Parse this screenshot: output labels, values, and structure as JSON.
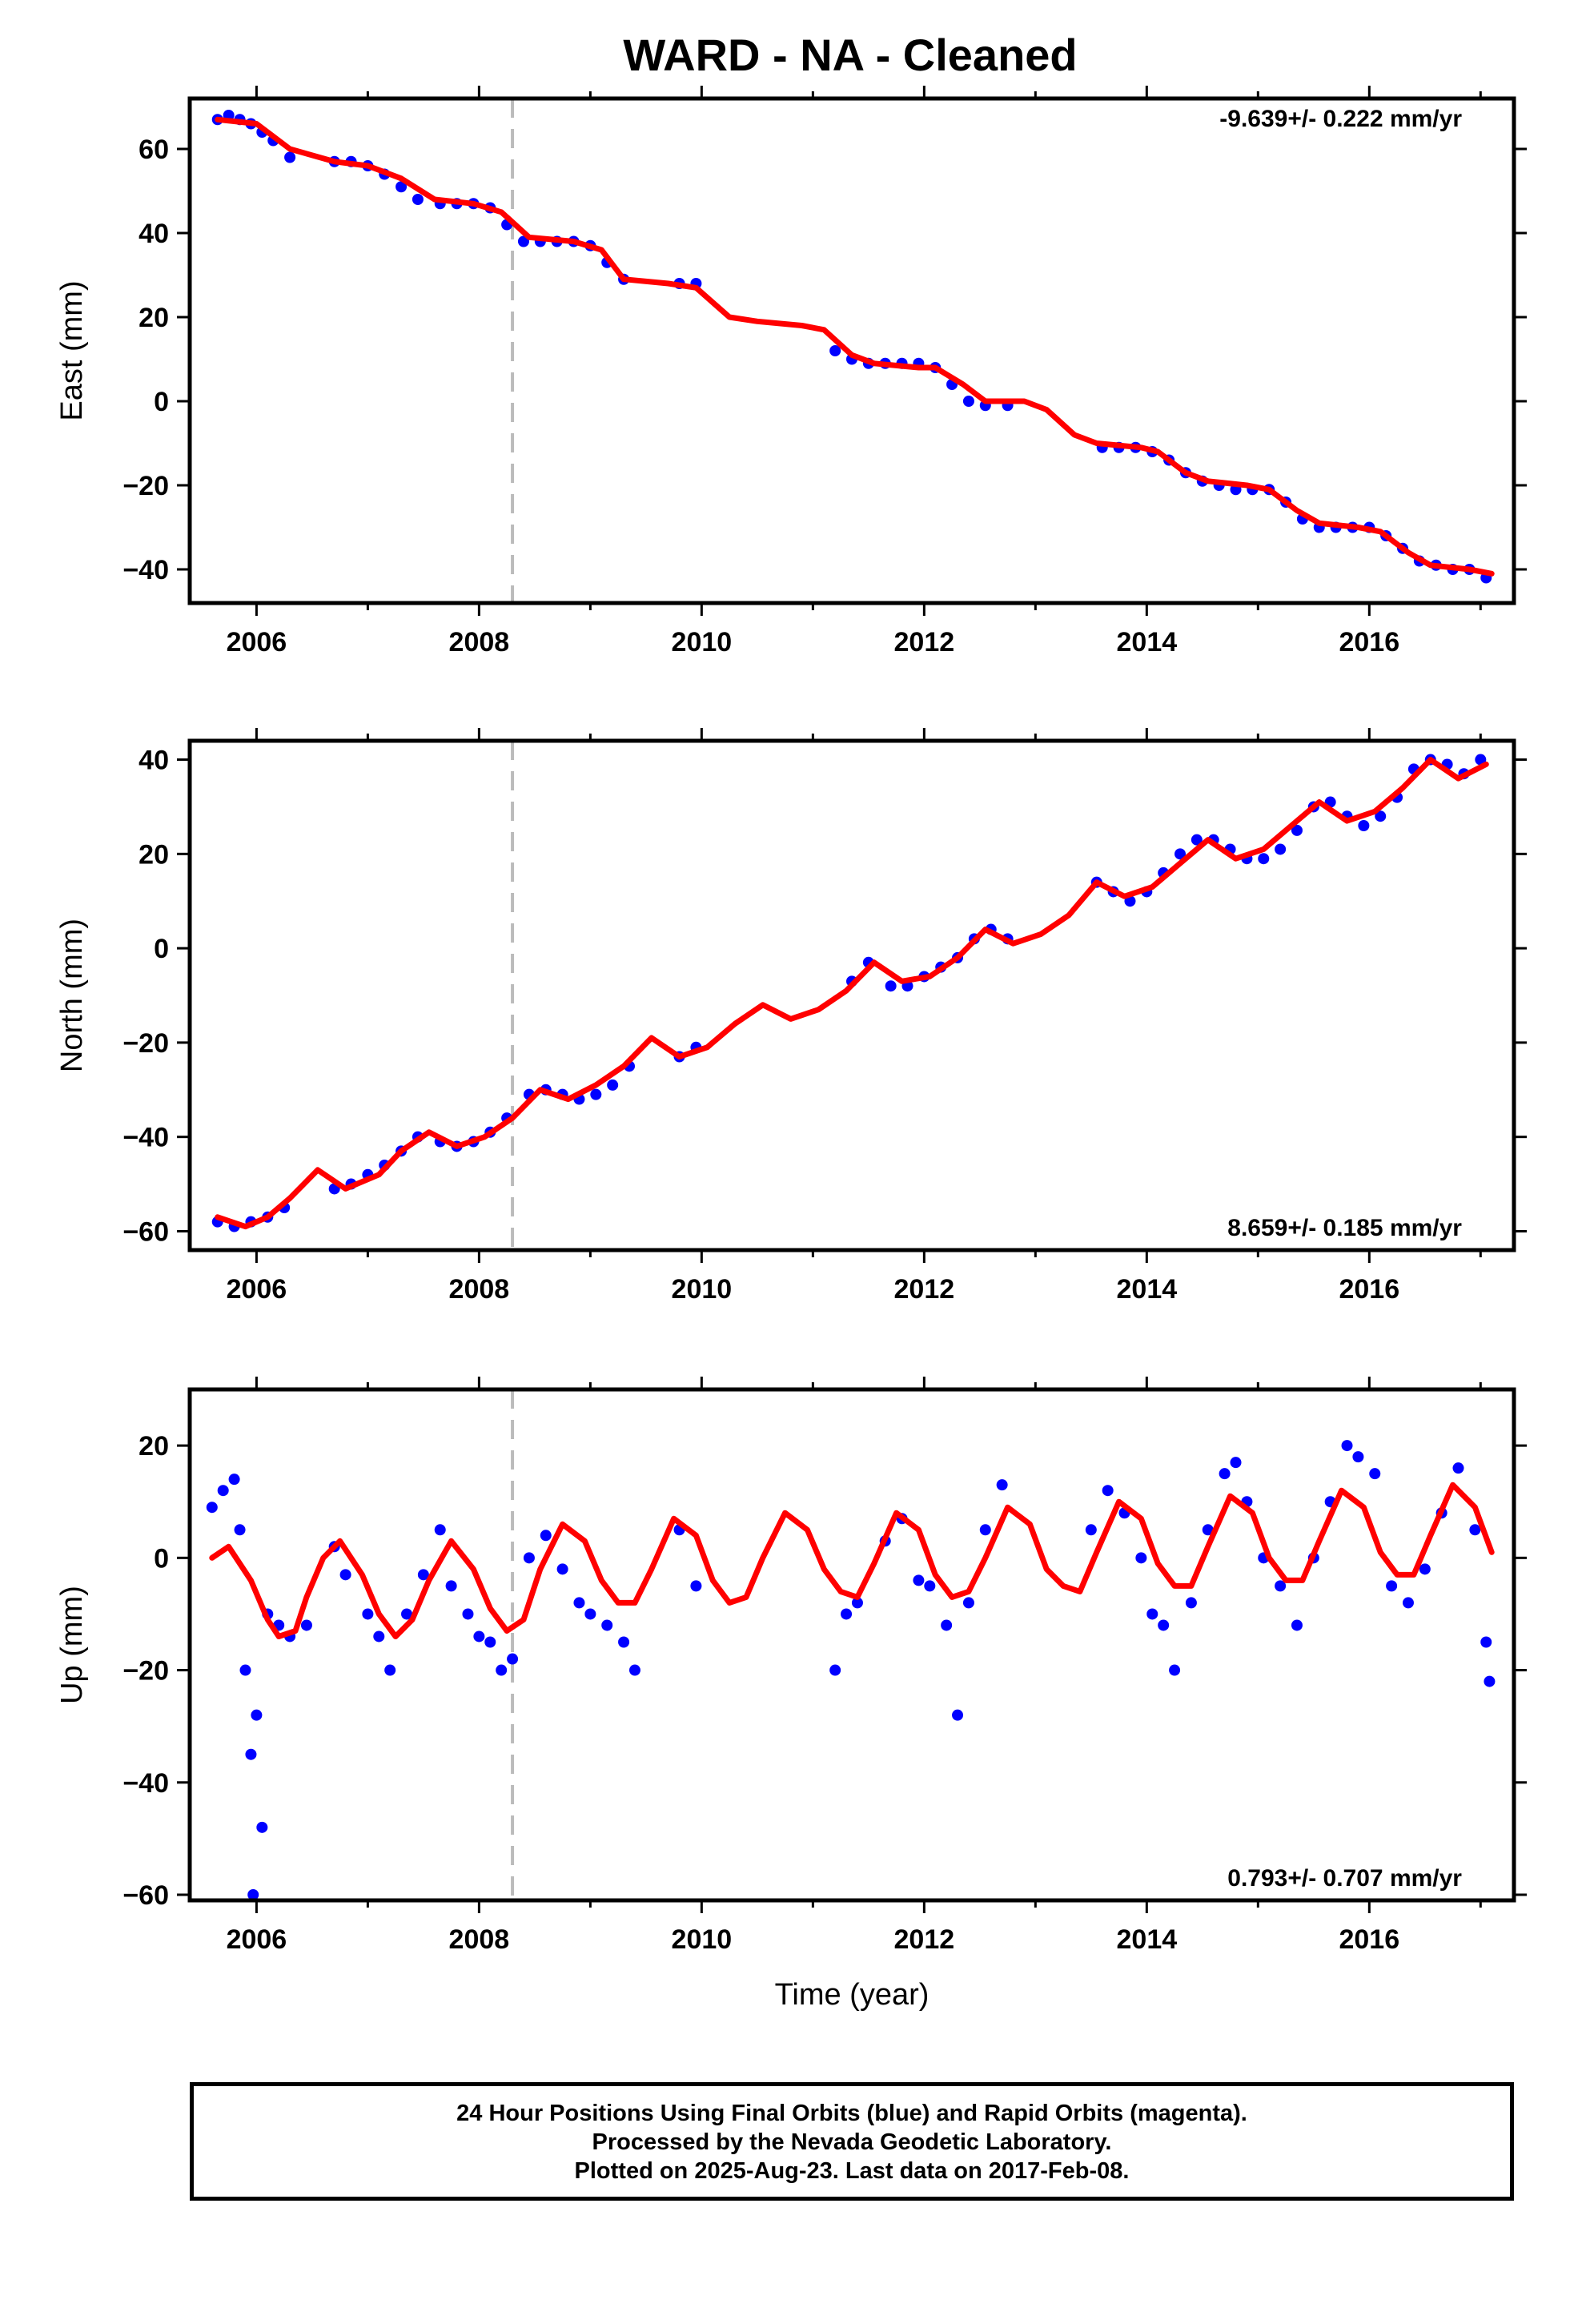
{
  "title": "WARD  - NA - Cleaned",
  "colors": {
    "observations": "#0000ff",
    "model": "#ff0000",
    "event_marker": "#bbbbbb",
    "frame": "#000000"
  },
  "footer": {
    "line1": "24 Hour Positions Using Final Orbits (blue) and Rapid Orbits (magenta).",
    "line2": "Processed by the Nevada Geodetic Laboratory.",
    "line3": "Plotted on 2025-Aug-23. Last data on 2017-Feb-08."
  },
  "chart_data": [
    {
      "type": "scatter",
      "ylabel": "East (mm)",
      "xlabel": "",
      "xlim": [
        2005.4,
        2017.3
      ],
      "ylim": [
        -48,
        72
      ],
      "xticks": [
        2006,
        2008,
        2010,
        2012,
        2014,
        2016
      ],
      "yticks": [
        -40,
        -20,
        0,
        20,
        40,
        60
      ],
      "rate_text": "-9.639+/- 0.222 mm/yr",
      "rate_position": "top-right",
      "event_marker_x": 2008.3,
      "series": [
        {
          "role": "observations",
          "x": [
            2005.65,
            2005.75,
            2005.85,
            2005.95,
            2006.05,
            2006.15,
            2006.3,
            2006.7,
            2006.85,
            2007.0,
            2007.15,
            2007.3,
            2007.45,
            2007.65,
            2007.8,
            2007.95,
            2008.1,
            2008.25,
            2008.4,
            2008.55,
            2008.7,
            2008.85,
            2009.0,
            2009.15,
            2009.3,
            2009.8,
            2009.95,
            2011.2,
            2011.35,
            2011.5,
            2011.65,
            2011.8,
            2011.95,
            2012.1,
            2012.25,
            2012.4,
            2012.55,
            2012.75,
            2013.6,
            2013.75,
            2013.9,
            2014.05,
            2014.2,
            2014.35,
            2014.5,
            2014.65,
            2014.8,
            2014.95,
            2015.1,
            2015.25,
            2015.4,
            2015.55,
            2015.7,
            2015.85,
            2016.0,
            2016.15,
            2016.3,
            2016.45,
            2016.6,
            2016.75,
            2016.9,
            2017.05
          ],
          "y": [
            67,
            68,
            67,
            66,
            64,
            62,
            58,
            57,
            57,
            56,
            54,
            51,
            48,
            47,
            47,
            47,
            46,
            42,
            38,
            38,
            38,
            38,
            37,
            33,
            29,
            28,
            28,
            12,
            10,
            9,
            9,
            9,
            9,
            8,
            4,
            0,
            -1,
            -1,
            -11,
            -11,
            -11,
            -12,
            -14,
            -17,
            -19,
            -20,
            -21,
            -21,
            -21,
            -24,
            -28,
            -30,
            -30,
            -30,
            -30,
            -32,
            -35,
            -38,
            -39,
            -40,
            -40,
            -42
          ]
        },
        {
          "role": "model",
          "x": [
            2005.65,
            2006.0,
            2006.3,
            2006.7,
            2007.0,
            2007.3,
            2007.6,
            2007.95,
            2008.2,
            2008.45,
            2008.85,
            2009.1,
            2009.3,
            2009.7,
            2009.95,
            2010.25,
            2010.5,
            2010.9,
            2011.1,
            2011.35,
            2011.55,
            2011.95,
            2012.1,
            2012.35,
            2012.55,
            2012.9,
            2013.1,
            2013.35,
            2013.55,
            2013.95,
            2014.1,
            2014.35,
            2014.55,
            2014.9,
            2015.1,
            2015.35,
            2015.55,
            2015.9,
            2016.1,
            2016.35,
            2016.55,
            2016.9,
            2017.1
          ],
          "y": [
            67,
            66,
            60,
            57,
            56,
            53,
            48,
            47,
            45,
            39,
            38,
            36,
            29,
            28,
            27,
            20,
            19,
            18,
            17,
            11,
            9,
            8,
            8,
            4,
            0,
            0,
            -2,
            -8,
            -10,
            -11,
            -12,
            -17,
            -19,
            -20,
            -21,
            -26,
            -29,
            -30,
            -31,
            -36,
            -39,
            -40,
            -41
          ]
        }
      ]
    },
    {
      "type": "scatter",
      "ylabel": "North (mm)",
      "xlabel": "",
      "xlim": [
        2005.4,
        2017.3
      ],
      "ylim": [
        -64,
        44
      ],
      "xticks": [
        2006,
        2008,
        2010,
        2012,
        2014,
        2016
      ],
      "yticks": [
        -60,
        -40,
        -20,
        0,
        20,
        40
      ],
      "rate_text": "8.659+/- 0.185 mm/yr",
      "rate_position": "bottom-right",
      "event_marker_x": 2008.3,
      "series": [
        {
          "role": "observations",
          "x": [
            2005.65,
            2005.8,
            2005.95,
            2006.1,
            2006.25,
            2006.7,
            2006.85,
            2007.0,
            2007.15,
            2007.3,
            2007.45,
            2007.65,
            2007.8,
            2007.95,
            2008.1,
            2008.25,
            2008.45,
            2008.6,
            2008.75,
            2008.9,
            2009.05,
            2009.2,
            2009.35,
            2009.8,
            2009.95,
            2011.35,
            2011.5,
            2011.7,
            2011.85,
            2012.0,
            2012.15,
            2012.3,
            2012.45,
            2012.6,
            2012.75,
            2013.55,
            2013.7,
            2013.85,
            2014.0,
            2014.15,
            2014.3,
            2014.45,
            2014.6,
            2014.75,
            2014.9,
            2015.05,
            2015.2,
            2015.35,
            2015.5,
            2015.65,
            2015.8,
            2015.95,
            2016.1,
            2016.25,
            2016.4,
            2016.55,
            2016.7,
            2016.85,
            2017.0
          ],
          "y": [
            -58,
            -59,
            -58,
            -57,
            -55,
            -51,
            -50,
            -48,
            -46,
            -43,
            -40,
            -41,
            -42,
            -41,
            -39,
            -36,
            -31,
            -30,
            -31,
            -32,
            -31,
            -29,
            -25,
            -23,
            -21,
            -7,
            -3,
            -8,
            -8,
            -6,
            -4,
            -2,
            2,
            4,
            2,
            14,
            12,
            10,
            12,
            16,
            20,
            23,
            23,
            21,
            19,
            19,
            21,
            25,
            30,
            31,
            28,
            26,
            28,
            32,
            38,
            40,
            39,
            37,
            40
          ]
        },
        {
          "role": "model",
          "x": [
            2005.65,
            2005.9,
            2006.1,
            2006.3,
            2006.55,
            2006.8,
            2007.1,
            2007.3,
            2007.55,
            2007.8,
            2008.05,
            2008.3,
            2008.55,
            2008.8,
            2009.05,
            2009.3,
            2009.55,
            2009.8,
            2010.05,
            2010.3,
            2010.55,
            2010.8,
            2011.05,
            2011.3,
            2011.55,
            2011.8,
            2012.05,
            2012.3,
            2012.55,
            2012.8,
            2013.05,
            2013.3,
            2013.55,
            2013.8,
            2014.05,
            2014.3,
            2014.55,
            2014.8,
            2015.05,
            2015.3,
            2015.55,
            2015.8,
            2016.05,
            2016.3,
            2016.55,
            2016.8,
            2017.05
          ],
          "y": [
            -57,
            -59,
            -57,
            -53,
            -47,
            -51,
            -48,
            -43,
            -39,
            -42,
            -40,
            -36,
            -30,
            -32,
            -29,
            -25,
            -19,
            -23,
            -21,
            -16,
            -12,
            -15,
            -13,
            -9,
            -3,
            -7,
            -6,
            -2,
            4,
            1,
            3,
            7,
            14,
            11,
            13,
            18,
            23,
            19,
            21,
            26,
            31,
            27,
            29,
            34,
            40,
            36,
            39
          ]
        }
      ]
    },
    {
      "type": "scatter",
      "ylabel": "Up (mm)",
      "xlabel": "Time (year)",
      "xlim": [
        2005.4,
        2017.3
      ],
      "ylim": [
        -61,
        30
      ],
      "xticks": [
        2006,
        2008,
        2010,
        2012,
        2014,
        2016
      ],
      "yticks": [
        -60,
        -40,
        -20,
        0,
        20
      ],
      "rate_text": "0.793+/- 0.707 mm/yr",
      "rate_position": "bottom-right",
      "event_marker_x": 2008.3,
      "series": [
        {
          "role": "observations",
          "x": [
            2005.6,
            2005.7,
            2005.8,
            2005.85,
            2005.9,
            2005.95,
            2005.97,
            2006.0,
            2006.05,
            2006.1,
            2006.2,
            2006.3,
            2006.45,
            2006.7,
            2006.8,
            2007.0,
            2007.1,
            2007.2,
            2007.35,
            2007.5,
            2007.65,
            2007.75,
            2007.9,
            2008.0,
            2008.1,
            2008.2,
            2008.3,
            2008.45,
            2008.6,
            2008.75,
            2008.9,
            2009.0,
            2009.15,
            2009.3,
            2009.4,
            2009.8,
            2009.95,
            2011.2,
            2011.3,
            2011.4,
            2011.65,
            2011.8,
            2011.95,
            2012.05,
            2012.2,
            2012.3,
            2012.4,
            2012.55,
            2012.7,
            2013.5,
            2013.65,
            2013.8,
            2013.95,
            2014.05,
            2014.15,
            2014.25,
            2014.4,
            2014.55,
            2014.7,
            2014.8,
            2014.9,
            2015.05,
            2015.2,
            2015.35,
            2015.5,
            2015.65,
            2015.8,
            2015.9,
            2016.05,
            2016.2,
            2016.35,
            2016.5,
            2016.65,
            2016.8,
            2016.95,
            2017.05,
            2017.08
          ],
          "y": [
            9,
            12,
            14,
            5,
            -20,
            -35,
            -60,
            -28,
            -48,
            -10,
            -12,
            -14,
            -12,
            2,
            -3,
            -10,
            -14,
            -20,
            -10,
            -3,
            5,
            -5,
            -10,
            -14,
            -15,
            -20,
            -18,
            0,
            4,
            -2,
            -8,
            -10,
            -12,
            -15,
            -20,
            5,
            -5,
            -20,
            -10,
            -8,
            3,
            7,
            -4,
            -5,
            -12,
            -28,
            -8,
            5,
            13,
            5,
            12,
            8,
            0,
            -10,
            -12,
            -20,
            -8,
            5,
            15,
            17,
            10,
            0,
            -5,
            -12,
            0,
            10,
            20,
            18,
            15,
            -5,
            -8,
            -2,
            8,
            16,
            5,
            -15,
            -22
          ]
        },
        {
          "role": "model",
          "x": [
            2005.6,
            2005.75,
            2005.95,
            2006.1,
            2006.2,
            2006.35,
            2006.45,
            2006.6,
            2006.75,
            2006.95,
            2007.1,
            2007.25,
            2007.4,
            2007.55,
            2007.75,
            2007.95,
            2008.1,
            2008.25,
            2008.4,
            2008.55,
            2008.75,
            2008.95,
            2009.1,
            2009.25,
            2009.4,
            2009.55,
            2009.75,
            2009.95,
            2010.1,
            2010.25,
            2010.4,
            2010.55,
            2010.75,
            2010.95,
            2011.1,
            2011.25,
            2011.4,
            2011.55,
            2011.75,
            2011.95,
            2012.1,
            2012.25,
            2012.4,
            2012.55,
            2012.75,
            2012.95,
            2013.1,
            2013.25,
            2013.4,
            2013.55,
            2013.75,
            2013.95,
            2014.1,
            2014.25,
            2014.4,
            2014.55,
            2014.75,
            2014.95,
            2015.1,
            2015.25,
            2015.4,
            2015.55,
            2015.75,
            2015.95,
            2016.1,
            2016.25,
            2016.4,
            2016.55,
            2016.75,
            2016.95,
            2017.1
          ],
          "y": [
            0,
            2,
            -4,
            -11,
            -14,
            -13,
            -7,
            0,
            3,
            -3,
            -10,
            -14,
            -11,
            -4,
            3,
            -2,
            -9,
            -13,
            -11,
            -2,
            6,
            3,
            -4,
            -8,
            -8,
            -2,
            7,
            4,
            -4,
            -8,
            -7,
            0,
            8,
            5,
            -2,
            -6,
            -7,
            -1,
            8,
            5,
            -3,
            -7,
            -6,
            0,
            9,
            6,
            -2,
            -5,
            -6,
            1,
            10,
            7,
            -1,
            -5,
            -5,
            2,
            11,
            8,
            0,
            -4,
            -4,
            3,
            12,
            9,
            1,
            -3,
            -3,
            4,
            13,
            9,
            1
          ]
        }
      ]
    }
  ]
}
